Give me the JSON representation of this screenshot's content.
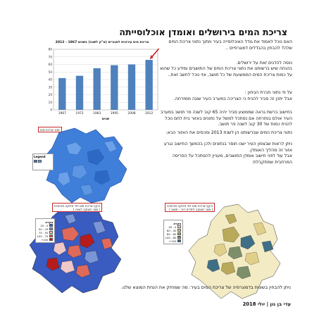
{
  "title": "צריכת המים בירושלים ואומדן אוכלוסייתה",
  "paragraphs": {
    "p1": "האם נוכל לאמוד את גודל האוכלוסייה בעיר מתוך נתוני צריכת המים שלה? להבחין בהבדלים דמוגרפיים ..",
    "p2": "ננסה להדגים זאת על ירושלים.",
    "p3": "בהנחה שיש ברשותנו את נתוני צריכת המים של התושבים ומידע כל שהוא על כמות צריכת המים הממוצעת של כל תושב, אזי נוכל לחשב זאת..",
    "p4": "על פי נתוני חברת הגיחון :",
    "p5": "אבל יתכן זה סביר להניח כי הצריכה במערב העיר שונה ממזרחה.",
    "p6": "בחישוב ברשת גראה שממוצע סביר יהיה 65 קוב לשנה פר תושב במערב העיר אולם במזרחה אם נסתכל למשל על נתונים באזור בית לחם נוכל להניח כמות של 30 קוב לשנה פר תושב.",
    "p7": "נתוני צריכת המים שברשותנו הן לשנת 2013 ומכסים את האזור הבא:",
    "p8": "ניתן לראות שבצפון העיר ישנו חוסר בנתונים ולכן בהמשך החישוב נגרע אזור זה מהליך האומדן.",
    "p9": "אבל עוד לפני חישוב אומדן התושבים, מעניין להסתכל על הפריסה המרחבית שמתקבלת:"
  },
  "chart": {
    "caption": "צריכת מים עירונית למגורים (מ\"ק לשנה) בשנים 1967 - 2012",
    "xlabel": "שנים",
    "bar_color": "#4f81bd",
    "highlight_color": "#c62828"
  },
  "chart_data": {
    "type": "bar",
    "categories": [
      "1967",
      "1972",
      "1983",
      "1995",
      "2008",
      "2012"
    ],
    "values": [
      42,
      45,
      55,
      59,
      60,
      66
    ],
    "ylim": [
      0,
      80
    ],
    "yticks": [
      "0",
      "10",
      "20",
      "30",
      "40",
      "50",
      "60",
      "70",
      "80"
    ],
    "title": "צריכת מים עירונית למגורים (מ\"ק לשנה) בשנים 1967 - 2012",
    "xlabel": "שנים",
    "ylabel": "",
    "grid": true
  },
  "maps": {
    "main": {
      "title": "אזור צריכת מים",
      "legend_title": "Legend"
    },
    "left": {
      "title_line1": "היקף צריכת מים לפי חלוקה מרחבית",
      "title_line2": "( מטר מעוקב לשנה )",
      "legend_title": "מקרא",
      "legend_items": [
        {
          "label": "0 - 25",
          "color": "#3a5bbf"
        },
        {
          "label": "25 - 50",
          "color": "#7a96d6"
        },
        {
          "label": "50 - 75",
          "color": "#f0c8c8"
        },
        {
          "label": "75 - 100",
          "color": "#e06a5a"
        },
        {
          "label": "100+",
          "color": "#b71c1c"
        }
      ]
    },
    "right": {
      "title_line1": "היקף צריכת מים לפי חלוקה מרחבית",
      "title_line2": "( מטר מעוקב ליחידת דיור - תושב )",
      "legend_title": "מקרא",
      "legend_items": [
        {
          "label": "0 - 40",
          "color": "#f3ebc4"
        },
        {
          "label": "40 - 60",
          "color": "#e0cf8a"
        },
        {
          "label": "60 - 80",
          "color": "#b9a95a"
        },
        {
          "label": "80 - 100",
          "color": "#7c8e6a"
        },
        {
          "label": "100+",
          "color": "#3f6f86"
        }
      ]
    }
  },
  "conclusion": "ניתן להבחין בשונות בדמוגרפיה של צריכת המים בעיר: מה שמחזק את הנחת המוצא שלנו.",
  "signature": "עדי בן נון | יולי 2018"
}
